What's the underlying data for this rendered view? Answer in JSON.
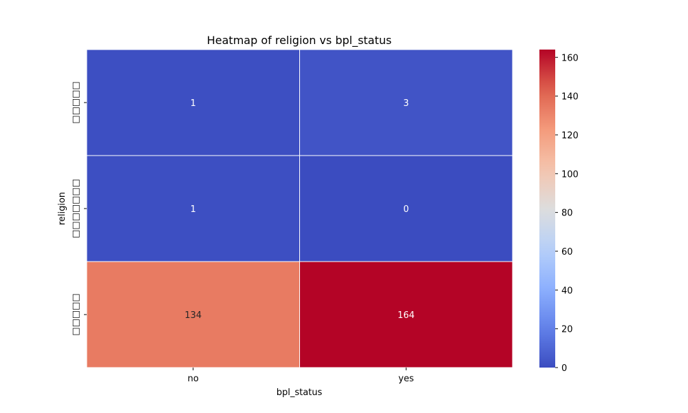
{
  "chart_data": {
    "type": "heatmap",
    "title": "Heatmap of religion vs bpl_status",
    "xlabel": "bpl_status",
    "ylabel": "religion",
    "x_categories": [
      "no",
      "yes"
    ],
    "y_categories": [
      "□□□□□",
      "□□□□□□□",
      "□□□□□"
    ],
    "values": [
      [
        1,
        3
      ],
      [
        1,
        0
      ],
      [
        134,
        164
      ]
    ],
    "colormap": "coolwarm",
    "color_range": [
      0,
      164
    ],
    "colorbar_ticks": [
      0,
      20,
      40,
      60,
      80,
      100,
      120,
      140,
      160
    ],
    "annotations": true,
    "grid": false
  }
}
